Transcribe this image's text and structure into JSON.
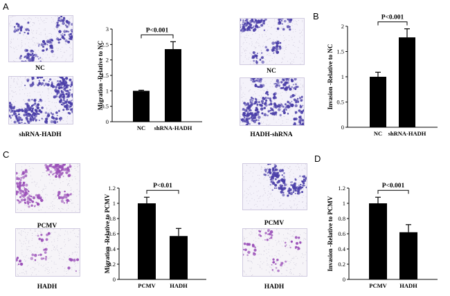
{
  "panels": {
    "a": {
      "letter": "A",
      "images": {
        "top_left": "NC",
        "bottom_left": "shRNA-HADH",
        "top_right": "NC",
        "bottom_right": "HADH-shRNA"
      }
    },
    "b": {
      "letter": "B"
    },
    "c": {
      "letter": "C",
      "images": {
        "top_left": "PCMV",
        "bottom_left": "HADH",
        "top_right": "PCMV",
        "bottom_right": "HADH"
      }
    },
    "d": {
      "letter": "D"
    }
  },
  "colors": {
    "bar": "#000000",
    "stain_dense": "#4a3ea8",
    "stain_light": "#9a4fb8",
    "background": "#ffffff"
  },
  "chart_data": [
    {
      "id": "A-migration",
      "type": "bar",
      "categories": [
        "NC",
        "shRNA-HADH"
      ],
      "values": [
        1.0,
        2.35
      ],
      "errors": [
        0.02,
        0.24
      ],
      "ylabel": "Migration -Relative to NC",
      "ylim": [
        0,
        3
      ],
      "yticks": [
        "0",
        "0.5",
        "1",
        "1.5",
        "2",
        "2.5",
        "3"
      ],
      "annotation": "P<0.001"
    },
    {
      "id": "B-invasion",
      "type": "bar",
      "categories": [
        "NC",
        "shRNA-HADH"
      ],
      "values": [
        1.0,
        1.78
      ],
      "errors": [
        0.09,
        0.17
      ],
      "ylabel": "Invasion -Relative to NC",
      "ylim": [
        0,
        2
      ],
      "yticks": [
        "0",
        "0.5",
        "1",
        "1.5",
        "2"
      ],
      "annotation": "P<0.001"
    },
    {
      "id": "C-migration",
      "type": "bar",
      "categories": [
        "PCMV",
        "HADH"
      ],
      "values": [
        1.0,
        0.57
      ],
      "errors": [
        0.08,
        0.1
      ],
      "ylabel": "Migration -Relative to PCMV",
      "ylim": [
        0,
        1.2
      ],
      "yticks": [
        "0",
        "0.2",
        "0.4",
        "0.6",
        "0.8",
        "1",
        "1.2"
      ],
      "annotation": "P<0.01"
    },
    {
      "id": "D-invasion",
      "type": "bar",
      "categories": [
        "PCMV",
        "HADH"
      ],
      "values": [
        1.0,
        0.62
      ],
      "errors": [
        0.08,
        0.1
      ],
      "ylabel": "Invasion -Relative to PCMV",
      "ylim": [
        0,
        1.2
      ],
      "yticks": [
        "0",
        "0.2",
        "0.4",
        "0.6",
        "0.8",
        "1",
        "1.2"
      ],
      "annotation": "P<0.001"
    }
  ]
}
